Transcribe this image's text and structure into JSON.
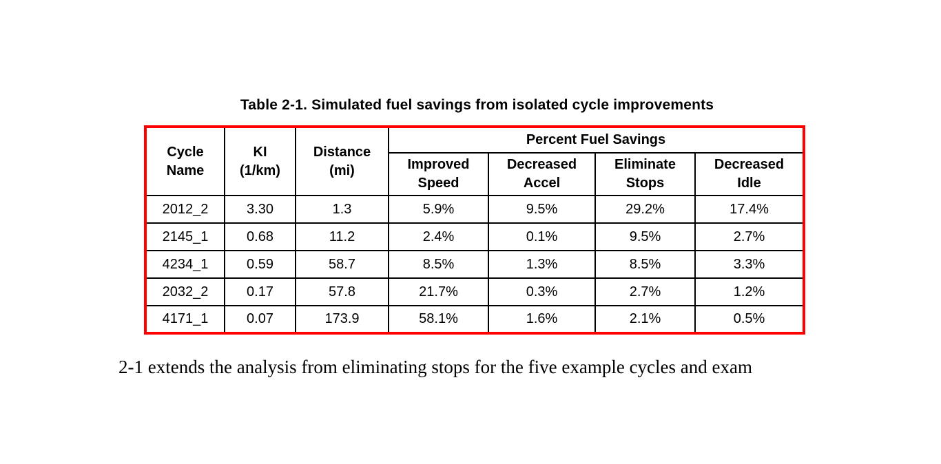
{
  "caption": "Table 2-1. Simulated fuel savings from isolated cycle improvements",
  "table": {
    "border_color": "#ff0000",
    "group_header": "Percent Fuel Savings",
    "headers": {
      "cycle_name": "Cycle\nName",
      "ki": "KI\n(1/km)",
      "distance": "Distance\n(mi)",
      "improved_speed": "Improved\nSpeed",
      "decreased_accel": "Decreased\nAccel",
      "eliminate_stops": "Eliminate\nStops",
      "decreased_idle": "Decreased\nIdle"
    },
    "rows": [
      [
        "2012_2",
        "3.30",
        "1.3",
        "5.9%",
        "9.5%",
        "29.2%",
        "17.4%"
      ],
      [
        "2145_1",
        "0.68",
        "11.2",
        "2.4%",
        "0.1%",
        "9.5%",
        "2.7%"
      ],
      [
        "4234_1",
        "0.59",
        "58.7",
        "8.5%",
        "1.3%",
        "8.5%",
        "3.3%"
      ],
      [
        "2032_2",
        "0.17",
        "57.8",
        "21.7%",
        "0.3%",
        "2.7%",
        "1.2%"
      ],
      [
        "4171_1",
        "0.07",
        "173.9",
        "58.1%",
        "1.6%",
        "2.1%",
        "0.5%"
      ]
    ]
  },
  "body_text": "2-1 extends the analysis from eliminating stops for the five example cycles and exam"
}
